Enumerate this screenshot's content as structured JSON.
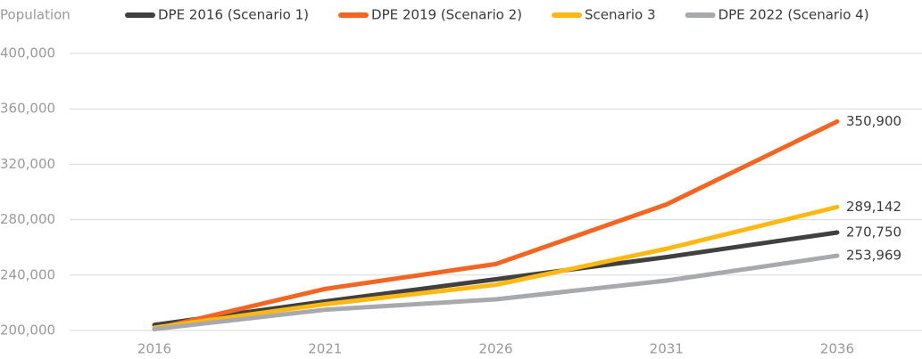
{
  "chart_data": {
    "type": "line",
    "y_label": "Population",
    "categories": [
      "2016",
      "2021",
      "2026",
      "2031",
      "2036"
    ],
    "series": [
      {
        "name": "DPE 2016 (Scenario 1)",
        "color": "#404040",
        "values": [
          204000,
          221000,
          237000,
          253000,
          270750
        ],
        "value_labels": [
          null,
          null,
          null,
          null,
          "270,750"
        ]
      },
      {
        "name": "DPE 2019 (Scenario 2)",
        "color": "#f26522",
        "values": [
          201000,
          230000,
          248000,
          291000,
          350900
        ],
        "value_labels": [
          null,
          null,
          null,
          null,
          "350,900"
        ]
      },
      {
        "name": "Scenario 3",
        "color": "#fdb913",
        "values": [
          202000,
          219000,
          233000,
          259000,
          289142
        ],
        "value_labels": [
          null,
          null,
          null,
          null,
          "289,142"
        ]
      },
      {
        "name": "DPE 2022 (Scenario 4)",
        "color": "#a7a9ac",
        "values": [
          201000,
          215000,
          222500,
          236000,
          253969
        ],
        "value_labels": [
          null,
          null,
          null,
          null,
          "253,969"
        ]
      }
    ],
    "ylim": [
      200000,
      400000
    ],
    "yticks": [
      {
        "value": 200000,
        "label": "200,000"
      },
      {
        "value": 240000,
        "label": "240,000"
      },
      {
        "value": 280000,
        "label": "280,000"
      },
      {
        "value": 320000,
        "label": "320,000"
      },
      {
        "value": 360000,
        "label": "360,000"
      },
      {
        "value": 400000,
        "label": "400,000"
      }
    ],
    "grid": true,
    "legend": "top"
  }
}
